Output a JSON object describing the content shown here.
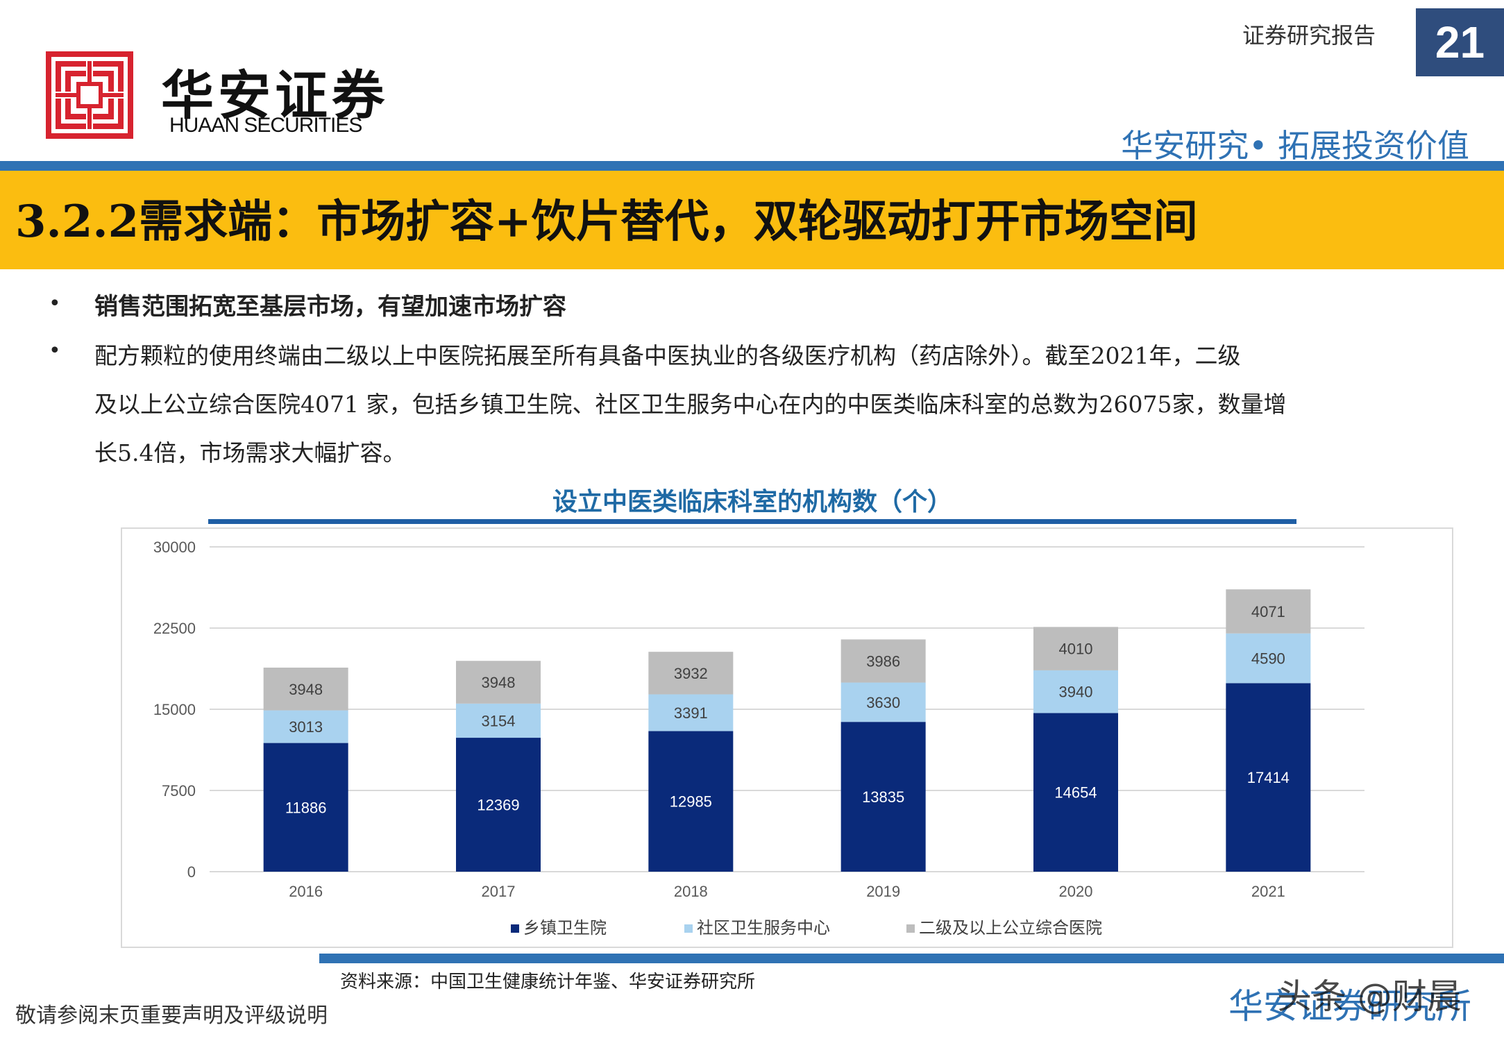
{
  "header": {
    "brand_cn": "华安证券",
    "brand_en": "HUAAN SECURITIES",
    "doc_type": "证券研究报告",
    "page_number": "21",
    "slogan": "华安研究• 拓展投资价值",
    "colors": {
      "blue": "#2f72b4",
      "banner": "#fbbd10",
      "logo_red": "#d7232f"
    }
  },
  "banner": {
    "title": "3.2.2需求端：市场扩容+饮片替代，双轮驱动打开市场空间"
  },
  "body": {
    "bullet_marker": "•",
    "bullet1": "销售范围拓宽至基层市场，有望加速市场扩容",
    "bullet2_lines": [
      "配方颗粒的使用终端由二级以上中医院拓展至所有具备中医执业的各级医疗机构（药店除外）。截至2021年，二级",
      "及以上公立综合医院4071 家，包括乡镇卫生院、社区卫生服务中心在内的中医类临床科室的总数为26075家，数量增",
      "长5.4倍，市场需求大幅扩容。"
    ]
  },
  "chart_title": "设立中医类临床科室的机构数（个）",
  "chart_data": {
    "type": "bar",
    "stacked": true,
    "categories": [
      "2016",
      "2017",
      "2018",
      "2019",
      "2020",
      "2021"
    ],
    "series": [
      {
        "name": "乡镇卫生院",
        "values": [
          11886,
          12369,
          12985,
          13835,
          14654,
          17414
        ],
        "color": "#0a2a7a"
      },
      {
        "name": "社区卫生服务中心",
        "values": [
          3013,
          3154,
          3391,
          3630,
          3940,
          4590
        ],
        "color": "#a9d2ef"
      },
      {
        "name": "二级及以上公立综合医院",
        "values": [
          3948,
          3948,
          3932,
          3986,
          4010,
          4071
        ],
        "color": "#bdbdbd"
      }
    ],
    "yticks": [
      "0",
      "7500",
      "15000",
      "22500",
      "30000"
    ],
    "ylim": [
      0,
      30000
    ],
    "grid": true,
    "legend_position": "bottom"
  },
  "footer": {
    "source": "资料来源：中国卫生健康统计年鉴、华安证券研究所",
    "disclaimer": "敬请参阅末页重要声明及评级说明",
    "footer_brand": "华安证券研究所",
    "watermark": "头条 @财晨"
  }
}
